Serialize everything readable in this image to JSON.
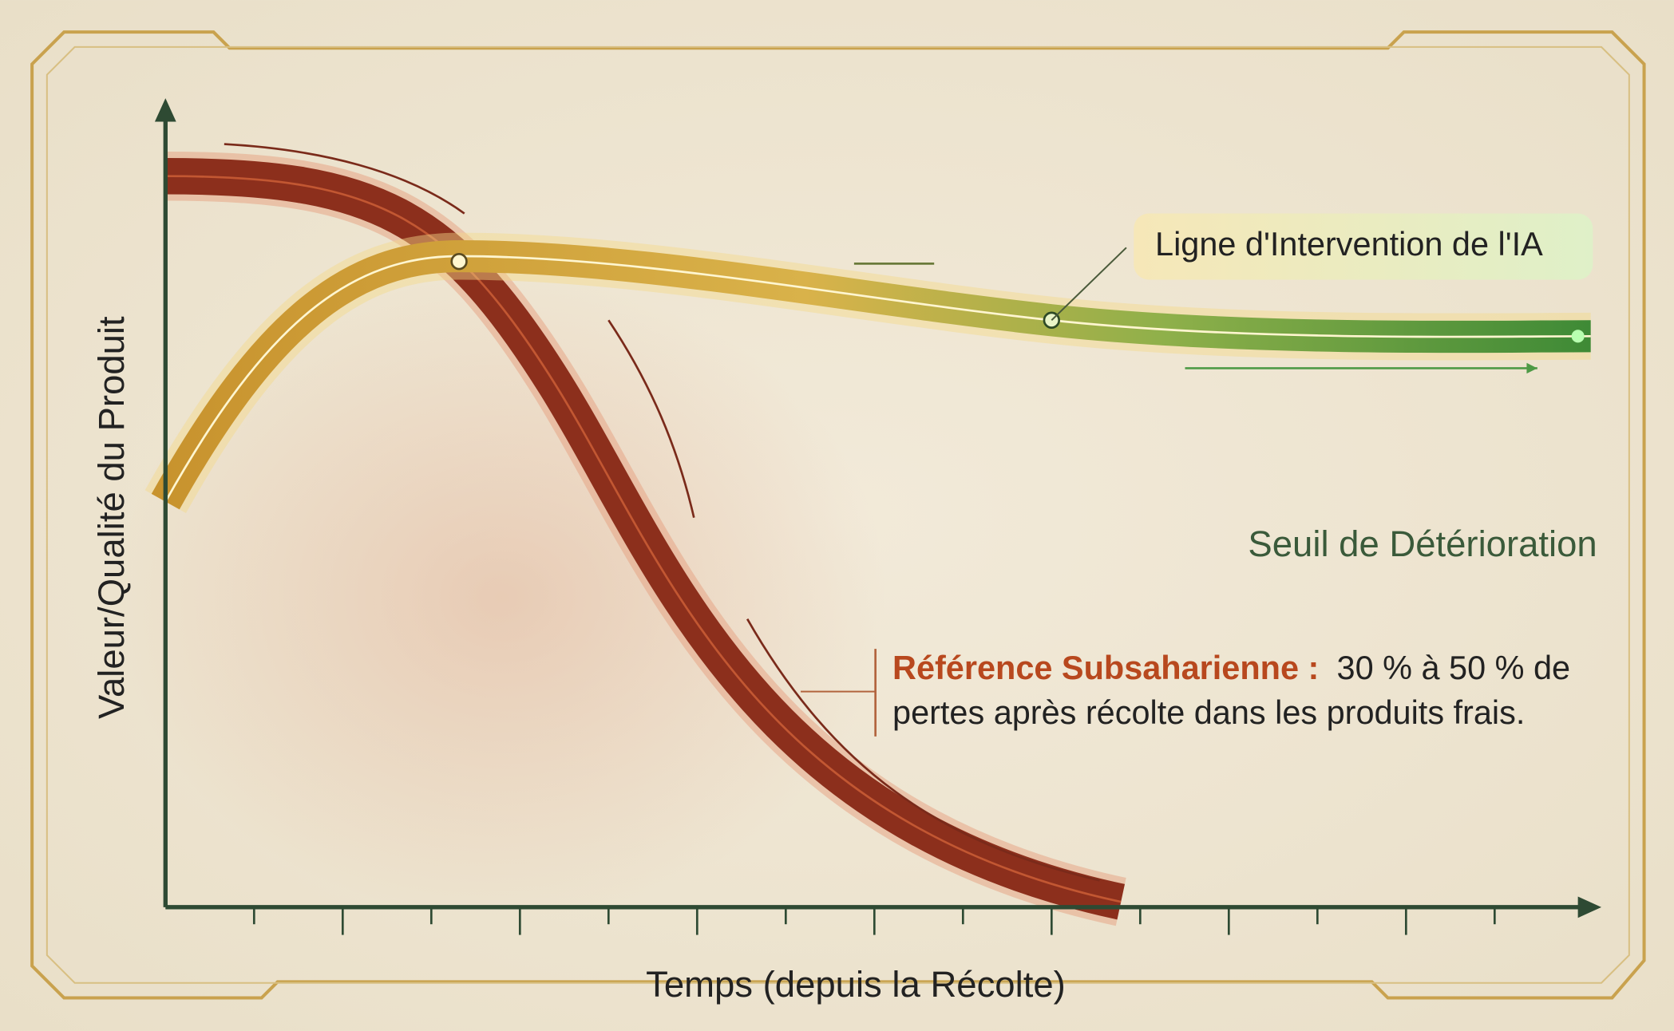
{
  "axes": {
    "y_label": "Valeur/Qualité du Produit",
    "x_label": "Temps (depuis la Récolte)"
  },
  "labels": {
    "ai_line": "Ligne d'Intervention de l'IA",
    "threshold": "Seuil de Détérioration"
  },
  "annotation": {
    "highlight": "Référence Subsaharienne :",
    "lines": [
      "30 % à 50 % de",
      "pertes après récolte dans les produits frais."
    ]
  }
}
